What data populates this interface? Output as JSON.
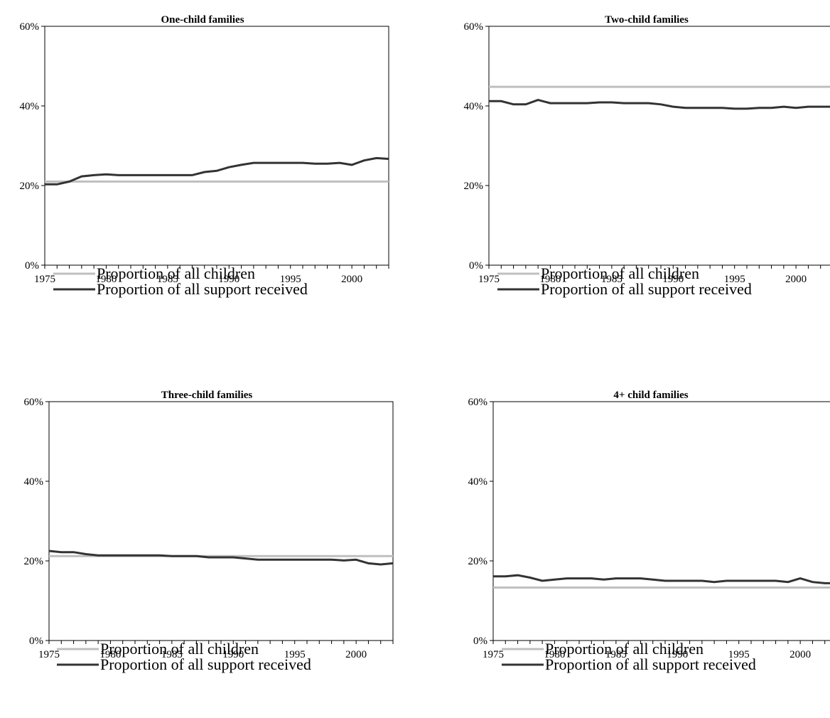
{
  "colors": {
    "children": "#bfbfbf",
    "support": "#333333",
    "axis": "#000000"
  },
  "legend": [
    "Proportion of all children",
    "Proportion of all support received"
  ],
  "chart_data": [
    {
      "type": "line",
      "title": "One-child families",
      "x": [
        1975,
        1976,
        1977,
        1978,
        1979,
        1980,
        1981,
        1982,
        1983,
        1984,
        1985,
        1986,
        1987,
        1988,
        1989,
        1990,
        1991,
        1992,
        1993,
        1994,
        1995,
        1996,
        1997,
        1998,
        1999,
        2000,
        2001,
        2002,
        2003
      ],
      "ylim": [
        0,
        60
      ],
      "xlim": [
        1975,
        2003
      ],
      "yticks": [
        "0%",
        "20%",
        "40%",
        "60%"
      ],
      "xticks": [
        "1975",
        "1980",
        "1985",
        "1990",
        "1995",
        "2000"
      ],
      "series": [
        {
          "name": "Proportion of all children",
          "values": [
            21,
            21,
            21,
            21,
            21,
            21,
            21,
            21,
            21,
            21,
            21,
            21,
            21,
            21,
            21,
            21,
            21,
            21,
            21,
            21,
            21,
            21,
            21,
            21,
            21,
            21,
            21,
            21,
            21
          ]
        },
        {
          "name": "Proportion of all support received",
          "values": [
            20.3,
            20.3,
            21,
            22.3,
            22.6,
            22.8,
            22.6,
            22.6,
            22.6,
            22.6,
            22.6,
            22.6,
            22.6,
            23.4,
            23.7,
            24.6,
            25.2,
            25.7,
            25.7,
            25.7,
            25.7,
            25.7,
            25.5,
            25.5,
            25.7,
            25.2,
            26.3,
            26.9,
            26.7
          ]
        }
      ]
    },
    {
      "type": "line",
      "title": "Two-child families",
      "x": [
        1975,
        1976,
        1977,
        1978,
        1979,
        1980,
        1981,
        1982,
        1983,
        1984,
        1985,
        1986,
        1987,
        1988,
        1989,
        1990,
        1991,
        1992,
        1993,
        1994,
        1995,
        1996,
        1997,
        1998,
        1999,
        2000,
        2001,
        2002,
        2003
      ],
      "ylim": [
        0,
        60
      ],
      "xlim": [
        1975,
        2003
      ],
      "yticks": [
        "0%",
        "20%",
        "40%",
        "60%"
      ],
      "xticks": [
        "1975",
        "1980",
        "1985",
        "1990",
        "1995",
        "2000"
      ],
      "series": [
        {
          "name": "Proportion of all children",
          "values": [
            44.8,
            44.8,
            44.8,
            44.8,
            44.8,
            44.8,
            44.8,
            44.8,
            44.8,
            44.8,
            44.8,
            44.8,
            44.8,
            44.8,
            44.8,
            44.8,
            44.8,
            44.8,
            44.8,
            44.8,
            44.8,
            44.8,
            44.8,
            44.8,
            44.8,
            44.8,
            44.8,
            44.8,
            44.8
          ]
        },
        {
          "name": "Proportion of all support received",
          "values": [
            41.2,
            41.2,
            40.4,
            40.4,
            41.5,
            40.7,
            40.7,
            40.7,
            40.7,
            40.9,
            40.9,
            40.7,
            40.7,
            40.7,
            40.4,
            39.8,
            39.5,
            39.5,
            39.5,
            39.5,
            39.3,
            39.3,
            39.5,
            39.5,
            39.8,
            39.5,
            39.8,
            39.8,
            39.8
          ]
        }
      ]
    },
    {
      "type": "line",
      "title": "Three-child families",
      "x": [
        1975,
        1976,
        1977,
        1978,
        1979,
        1980,
        1981,
        1982,
        1983,
        1984,
        1985,
        1986,
        1987,
        1988,
        1989,
        1990,
        1991,
        1992,
        1993,
        1994,
        1995,
        1996,
        1997,
        1998,
        1999,
        2000,
        2001,
        2002,
        2003
      ],
      "ylim": [
        0,
        60
      ],
      "xlim": [
        1975,
        2003
      ],
      "yticks": [
        "0%",
        "20%",
        "40%",
        "60%"
      ],
      "xticks": [
        "1975",
        "1980",
        "1985",
        "1990",
        "1995",
        "2000"
      ],
      "series": [
        {
          "name": "Proportion of all children",
          "values": [
            21.2,
            21.2,
            21.2,
            21.2,
            21.2,
            21.2,
            21.2,
            21.2,
            21.2,
            21.2,
            21.2,
            21.2,
            21.2,
            21.2,
            21.2,
            21.2,
            21.2,
            21.2,
            21.2,
            21.2,
            21.2,
            21.2,
            21.2,
            21.2,
            21.2,
            21.2,
            21.2,
            21.2,
            21.2
          ]
        },
        {
          "name": "Proportion of all support received",
          "values": [
            22.5,
            22.2,
            22.2,
            21.7,
            21.4,
            21.4,
            21.4,
            21.4,
            21.4,
            21.4,
            21.2,
            21.2,
            21.2,
            20.9,
            20.9,
            20.9,
            20.6,
            20.3,
            20.3,
            20.3,
            20.3,
            20.3,
            20.3,
            20.3,
            20.1,
            20.3,
            19.4,
            19.1,
            19.4
          ]
        }
      ]
    },
    {
      "type": "line",
      "title": "4+ child families",
      "x": [
        1975,
        1976,
        1977,
        1978,
        1979,
        1980,
        1981,
        1982,
        1983,
        1984,
        1985,
        1986,
        1987,
        1988,
        1989,
        1990,
        1991,
        1992,
        1993,
        1994,
        1995,
        1996,
        1997,
        1998,
        1999,
        2000,
        2001,
        2002,
        2003
      ],
      "ylim": [
        0,
        60
      ],
      "xlim": [
        1975,
        2003
      ],
      "yticks": [
        "0%",
        "20%",
        "40%",
        "60%"
      ],
      "xticks": [
        "1975",
        "1980",
        "1985",
        "1990",
        "1995",
        "2000"
      ],
      "series": [
        {
          "name": "Proportion of all children",
          "values": [
            13.3,
            13.3,
            13.3,
            13.3,
            13.3,
            13.3,
            13.3,
            13.3,
            13.3,
            13.3,
            13.3,
            13.3,
            13.3,
            13.3,
            13.3,
            13.3,
            13.3,
            13.3,
            13.3,
            13.3,
            13.3,
            13.3,
            13.3,
            13.3,
            13.3,
            13.3,
            13.3,
            13.3,
            13.3
          ]
        },
        {
          "name": "Proportion of all support received",
          "values": [
            16.1,
            16.1,
            16.4,
            15.8,
            15,
            15.3,
            15.6,
            15.6,
            15.6,
            15.3,
            15.6,
            15.6,
            15.6,
            15.3,
            15,
            15,
            15,
            15,
            14.7,
            15,
            15,
            15,
            15,
            15,
            14.7,
            15.6,
            14.7,
            14.4,
            14.4
          ]
        }
      ]
    }
  ]
}
